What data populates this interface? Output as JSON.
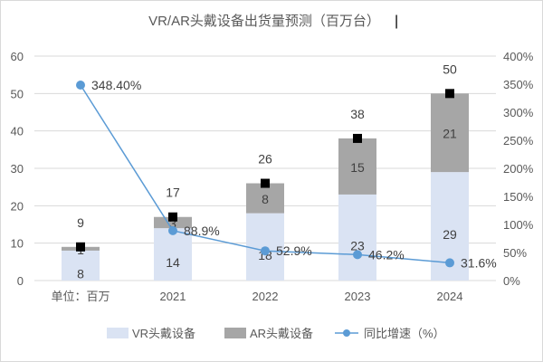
{
  "chart_data": {
    "type": "bar",
    "stacked": true,
    "title": "VR/AR头戴设备出货量预测（百万台）",
    "cursor": "|",
    "categories": [
      "单位：百万",
      "2021",
      "2022",
      "2023",
      "2024"
    ],
    "series": [
      {
        "name": "VR头戴设备",
        "type": "bar",
        "axis": "left",
        "color": "#dae3f3",
        "values": [
          8,
          14,
          18,
          23,
          29
        ]
      },
      {
        "name": "AR头戴设备",
        "type": "bar",
        "axis": "left",
        "color": "#a6a6a6",
        "values": [
          1,
          3,
          8,
          15,
          21
        ]
      },
      {
        "name": "同比增速（%）",
        "type": "line",
        "axis": "right",
        "color": "#5b9bd5",
        "values": [
          348.4,
          88.9,
          52.9,
          46.2,
          31.6
        ],
        "labels": [
          "348.40%",
          "88.9%",
          "52.9%",
          "46.2%",
          "31.6%"
        ]
      }
    ],
    "totals": [
      9,
      17,
      26,
      38,
      50
    ],
    "total_marker_color": "#000000",
    "ylim": [
      0,
      60
    ],
    "yticks": [
      "0",
      "10",
      "20",
      "30",
      "40",
      "50",
      "60"
    ],
    "y2lim": [
      0,
      400
    ],
    "y2ticks": [
      "0%",
      "50%",
      "100%",
      "150%",
      "200%",
      "250%",
      "300%",
      "350%",
      "400%"
    ],
    "grid": true,
    "legend": "bottom"
  }
}
